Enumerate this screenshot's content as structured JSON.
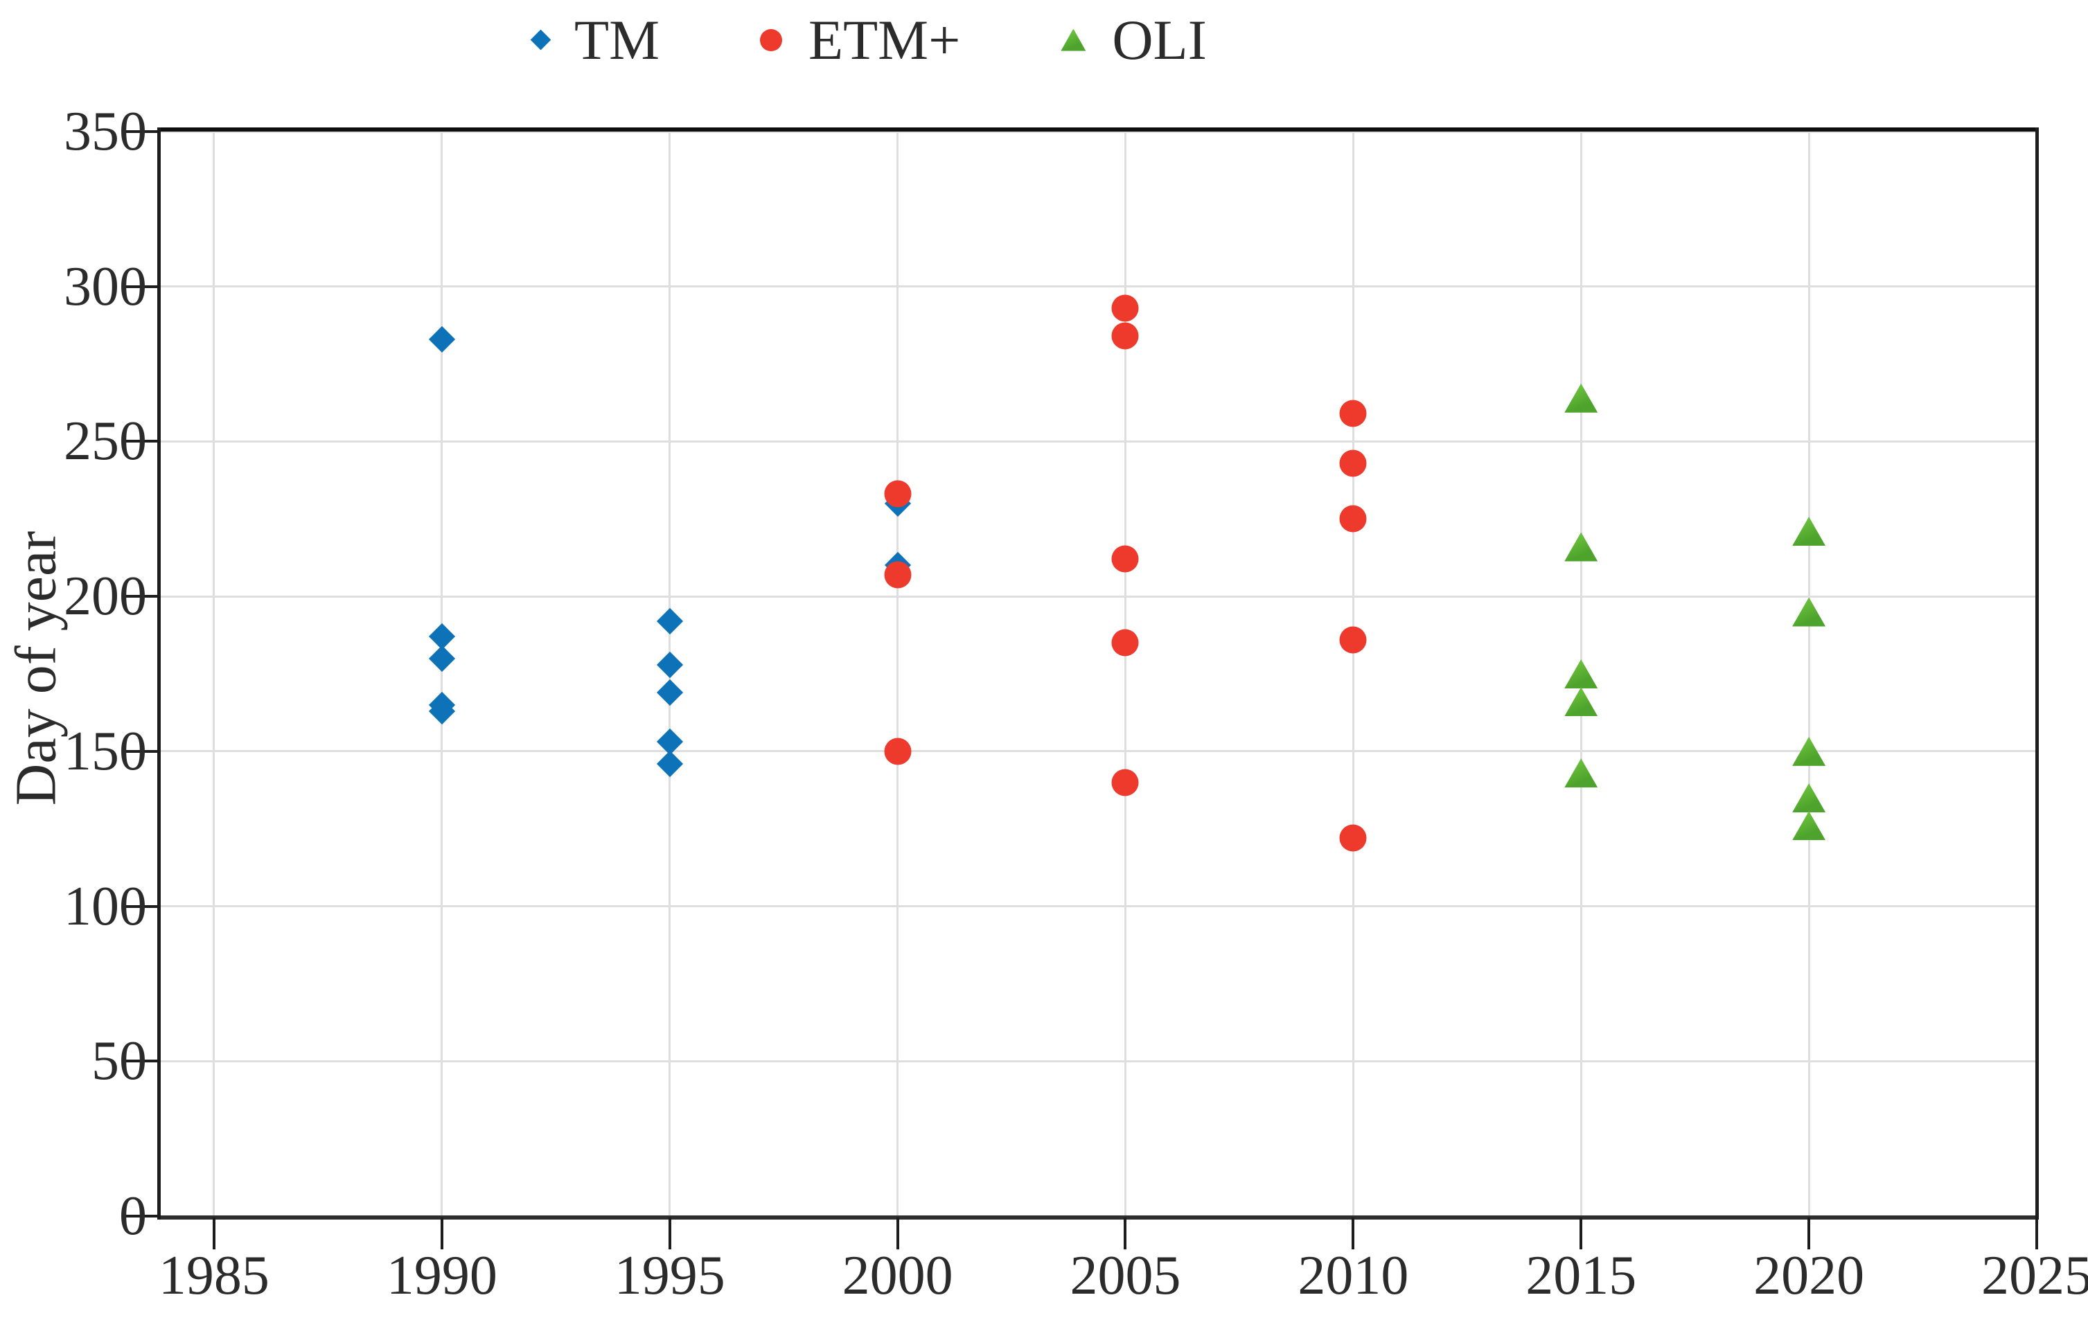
{
  "figure": {
    "background": "#ffffff",
    "axis_color": "#1d1d1d",
    "grid_color": "#dedede",
    "text_color": "#2b2b2b"
  },
  "chart_data": {
    "type": "scatter",
    "title": "",
    "xlabel": "",
    "ylabel": "Day of year",
    "xlim": [
      1983.8,
      2025
    ],
    "ylim": [
      0,
      350
    ],
    "x_ticks": [
      1985,
      1990,
      1995,
      2000,
      2005,
      2010,
      2015,
      2020,
      2025
    ],
    "y_ticks": [
      0,
      50,
      100,
      150,
      200,
      250,
      300,
      350
    ],
    "grid": true,
    "legend_position": "top-center",
    "series": [
      {
        "name": "TM",
        "marker": "diamond",
        "color": "#0E72B8",
        "points": [
          [
            1990,
            283
          ],
          [
            1990,
            187
          ],
          [
            1990,
            180
          ],
          [
            1990,
            165
          ],
          [
            1990,
            163
          ],
          [
            1995,
            192
          ],
          [
            1995,
            178
          ],
          [
            1995,
            169
          ],
          [
            1995,
            153
          ],
          [
            1995,
            146
          ],
          [
            2000,
            230
          ],
          [
            2000,
            210
          ]
        ]
      },
      {
        "name": "ETM+",
        "marker": "circle",
        "color": "#EE3A2D",
        "points": [
          [
            2000,
            233
          ],
          [
            2000,
            207
          ],
          [
            2000,
            150
          ],
          [
            2005,
            293
          ],
          [
            2005,
            284
          ],
          [
            2005,
            212
          ],
          [
            2005,
            185
          ],
          [
            2005,
            140
          ],
          [
            2010,
            259
          ],
          [
            2010,
            243
          ],
          [
            2010,
            225
          ],
          [
            2010,
            186
          ],
          [
            2010,
            122
          ]
        ]
      },
      {
        "name": "OLI",
        "marker": "triangle",
        "color": "#4DA32B",
        "color2": "#6FC43F",
        "points": [
          [
            2015,
            264
          ],
          [
            2015,
            216
          ],
          [
            2015,
            175
          ],
          [
            2015,
            166
          ],
          [
            2015,
            143
          ],
          [
            2020,
            221
          ],
          [
            2020,
            195
          ],
          [
            2020,
            150
          ],
          [
            2020,
            135
          ],
          [
            2020,
            126
          ]
        ]
      }
    ]
  }
}
